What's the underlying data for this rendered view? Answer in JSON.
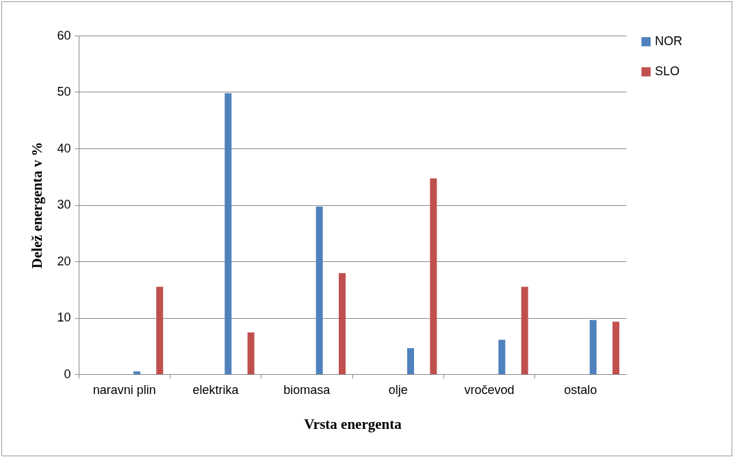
{
  "chart_data": {
    "type": "bar",
    "xlabel": "Vrsta energenta",
    "ylabel": "Delež energenta v %",
    "categories": [
      "naravni plin",
      "elektrika",
      "biomasa",
      "olje",
      "vročevod",
      "ostalo"
    ],
    "series": [
      {
        "name": "NOR",
        "color": "#4f81bd",
        "values": [
          0.5,
          49.8,
          29.7,
          4.6,
          6.1,
          9.6
        ]
      },
      {
        "name": "SLO",
        "color": "#c0504d",
        "values": [
          15.5,
          7.4,
          17.9,
          34.7,
          15.5,
          9.3
        ]
      }
    ],
    "ylim": [
      0,
      60
    ],
    "yticks": [
      0,
      10,
      20,
      30,
      40,
      50,
      60
    ],
    "grid": "y",
    "legend": "right"
  }
}
